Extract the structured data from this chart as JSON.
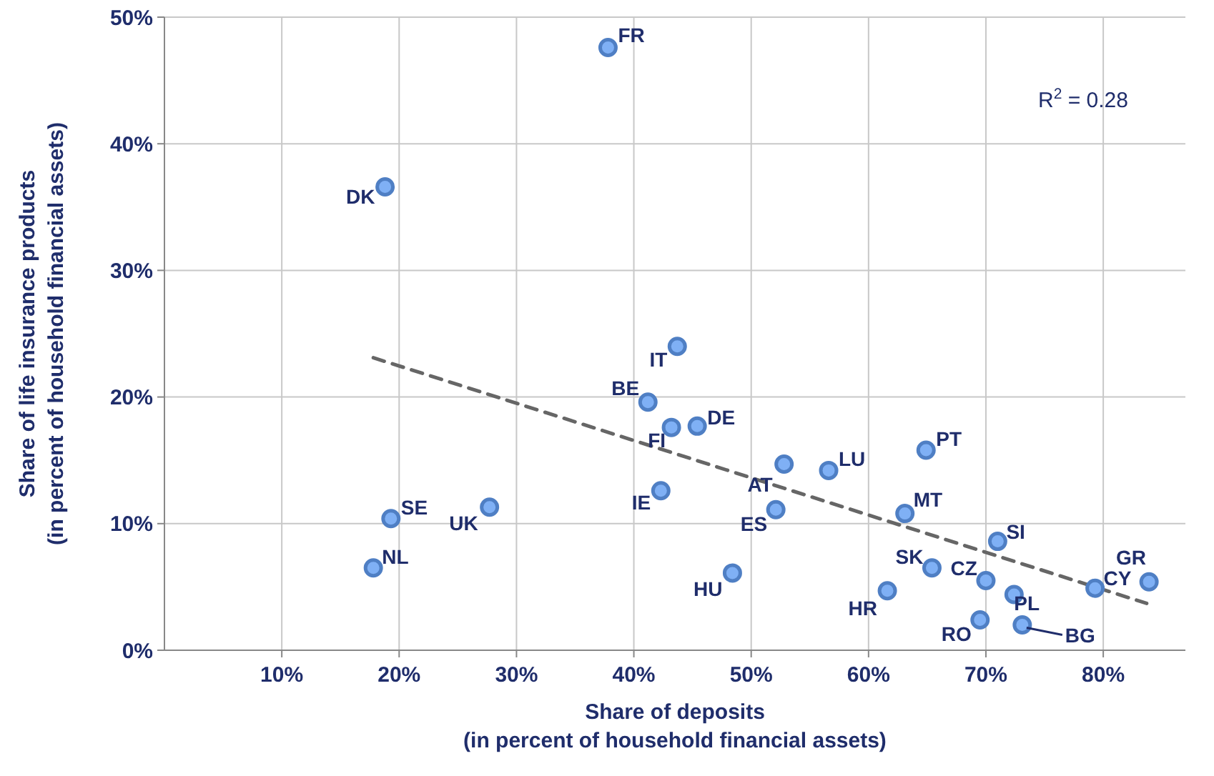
{
  "chart_data": {
    "type": "scatter",
    "xlabel": "Share of deposits\n(in percent of household financial assets)",
    "ylabel": "Share of life insurance products\n(in percent of household financial assets)",
    "xlim": [
      0,
      87
    ],
    "ylim": [
      0,
      50
    ],
    "xticks": [
      {
        "value": 10,
        "label": "10%"
      },
      {
        "value": 20,
        "label": "20%"
      },
      {
        "value": 30,
        "label": "30%"
      },
      {
        "value": 40,
        "label": "40%"
      },
      {
        "value": 50,
        "label": "50%"
      },
      {
        "value": 60,
        "label": "60%"
      },
      {
        "value": 70,
        "label": "70%"
      },
      {
        "value": 80,
        "label": "80%"
      }
    ],
    "yticks": [
      {
        "value": 0,
        "label": "0%"
      },
      {
        "value": 10,
        "label": "10%"
      },
      {
        "value": 20,
        "label": "20%"
      },
      {
        "value": 30,
        "label": "30%"
      },
      {
        "value": 40,
        "label": "40%"
      },
      {
        "value": 50,
        "label": "50%"
      }
    ],
    "grid": true,
    "marker": "circle",
    "series": [
      {
        "color": "#7fb0f5",
        "x": [
          37.8,
          18.8,
          43.7,
          41.2,
          43.2,
          45.4,
          52.8,
          56.6,
          64.9,
          42.3,
          52.1,
          63.1,
          19.3,
          27.7,
          17.8,
          48.4,
          71.0,
          65.4,
          70.0,
          79.3,
          83.9,
          61.6,
          72.4,
          69.5,
          73.1
        ],
        "values": [
          47.6,
          36.6,
          24.0,
          19.6,
          17.6,
          17.7,
          14.7,
          14.2,
          15.8,
          12.6,
          11.1,
          10.8,
          10.4,
          11.3,
          6.5,
          6.1,
          8.6,
          6.5,
          5.5,
          4.9,
          5.4,
          4.7,
          4.4,
          2.4,
          2.0
        ]
      },
      {
        "type": "line",
        "color": "#666666",
        "line_style": "dashed",
        "marker": "none",
        "x": [
          17.8,
          83.7
        ],
        "values": [
          23.1,
          3.7
        ]
      }
    ],
    "annotations": [
      {
        "text": "FR",
        "x": 37.8,
        "y": 47.6
      },
      {
        "text": "DK",
        "x": 18.8,
        "y": 36.6
      },
      {
        "text": "IT",
        "x": 43.7,
        "y": 24.0
      },
      {
        "text": "BE",
        "x": 41.2,
        "y": 19.6
      },
      {
        "text": "FI",
        "x": 43.2,
        "y": 17.6
      },
      {
        "text": "DE",
        "x": 45.4,
        "y": 17.7
      },
      {
        "text": "AT",
        "x": 52.8,
        "y": 14.7
      },
      {
        "text": "LU",
        "x": 56.6,
        "y": 14.2
      },
      {
        "text": "PT",
        "x": 64.9,
        "y": 15.8
      },
      {
        "text": "IE",
        "x": 42.3,
        "y": 12.6
      },
      {
        "text": "ES",
        "x": 52.1,
        "y": 11.1
      },
      {
        "text": "MT",
        "x": 63.1,
        "y": 10.8
      },
      {
        "text": "SE",
        "x": 19.3,
        "y": 10.4
      },
      {
        "text": "UK",
        "x": 27.7,
        "y": 11.3
      },
      {
        "text": "NL",
        "x": 17.8,
        "y": 6.5
      },
      {
        "text": "HU",
        "x": 48.4,
        "y": 6.1
      },
      {
        "text": "SI",
        "x": 71.0,
        "y": 8.6
      },
      {
        "text": "SK",
        "x": 65.4,
        "y": 6.5
      },
      {
        "text": "CZ",
        "x": 70.0,
        "y": 5.5
      },
      {
        "text": "CY",
        "x": 79.3,
        "y": 4.9
      },
      {
        "text": "GR",
        "x": 83.9,
        "y": 5.4
      },
      {
        "text": "HR",
        "x": 61.6,
        "y": 4.7
      },
      {
        "text": "PL",
        "x": 72.4,
        "y": 4.4
      },
      {
        "text": "RO",
        "x": 69.5,
        "y": 2.4
      },
      {
        "text": "BG",
        "x": 73.1,
        "y": 2.0
      },
      "R$^{2}$ = 0.28"
    ]
  }
}
